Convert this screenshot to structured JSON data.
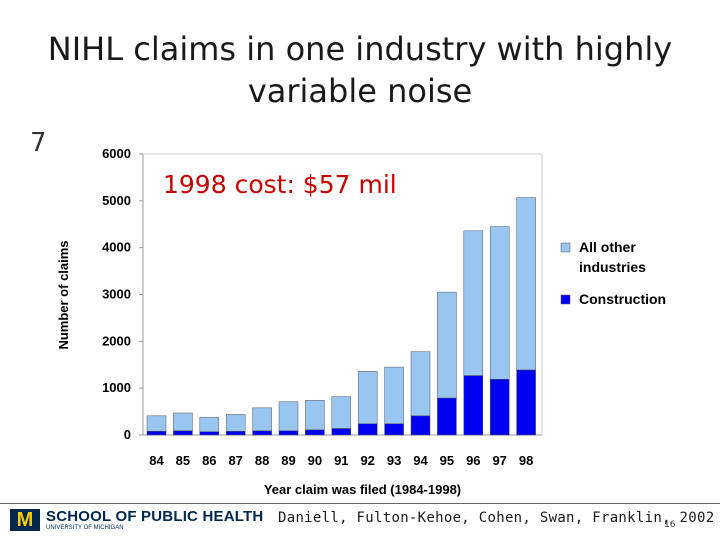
{
  "slide": {
    "title_line1": "NIHL claims in one industry with highly",
    "title_line2": "variable noise",
    "obscured_text": "7",
    "callout": "1998 cost: $57 mil",
    "citation": "Daniell, Fulton-Kehoe, Cohen, Swan, Franklin, 2002",
    "page_number": "16",
    "logo": {
      "mark": "M",
      "name": "SCHOOL OF PUBLIC HEALTH",
      "sub": "UNIVERSITY OF MICHIGAN"
    }
  },
  "colors": {
    "all_other": "#99c6f0",
    "construction": "#0000f0",
    "callout": "#cc0000",
    "logo_blue": "#00274c",
    "logo_maize": "#ffcb05"
  },
  "chart_data": {
    "type": "bar",
    "stacked": true,
    "categories": [
      "84",
      "85",
      "86",
      "87",
      "88",
      "89",
      "90",
      "91",
      "92",
      "93",
      "94",
      "95",
      "96",
      "97",
      "98"
    ],
    "series": [
      {
        "name": "Construction",
        "values": [
          80,
          90,
          70,
          80,
          90,
          90,
          110,
          140,
          240,
          240,
          410,
          790,
          1270,
          1190,
          1390
        ]
      },
      {
        "name": "All other industries",
        "values": [
          330,
          380,
          310,
          360,
          490,
          620,
          630,
          680,
          1120,
          1210,
          1370,
          2260,
          3090,
          3260,
          3680
        ]
      }
    ],
    "xlabel": "Year claim was filed (1984-1998)",
    "ylabel": "Number of claims",
    "ylim": [
      0,
      6000
    ],
    "yticks": [
      "0",
      "1000",
      "2000",
      "3000",
      "4000",
      "5000",
      "6000"
    ],
    "legend": {
      "position": "right",
      "entries": [
        "All other industries",
        "Construction"
      ]
    },
    "grid": false
  }
}
